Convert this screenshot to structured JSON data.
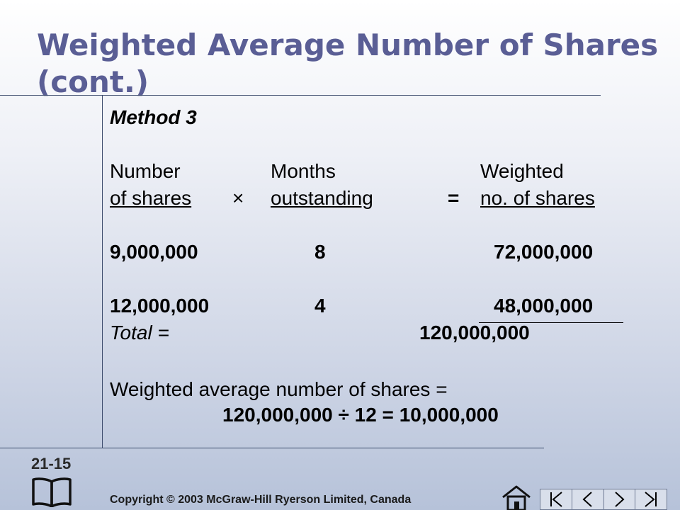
{
  "slide": {
    "title": "Weighted Average Number of Shares (cont.)",
    "method_label": "Method 3",
    "headers": {
      "col1_line1": "Number",
      "col1_line2": "of shares",
      "times_sign": "×",
      "col2_line1": "Months",
      "col2_line2": "outstanding",
      "equals_sign": "=",
      "col3_line1": "Weighted",
      "col3_line2": "no. of shares"
    },
    "rows": [
      {
        "shares": "9,000,000",
        "months": "8",
        "weighted": "72,000,000"
      },
      {
        "shares": "12,000,000",
        "months": "4",
        "weighted": "48,000,000"
      }
    ],
    "total_label": "Total =",
    "total_value": "120,000,000",
    "result_label": "Weighted average number of shares =",
    "result_formula": "120,000,000 ÷ 12 = 10,000,000"
  },
  "footer": {
    "slide_number": "21-15",
    "copyright": "Copyright © 2003 McGraw-Hill Ryerson Limited, Canada"
  },
  "icons": {
    "book": "book-icon",
    "home": "home-icon",
    "nav": [
      "first-slide-icon",
      "previous-slide-icon",
      "next-slide-icon",
      "last-slide-icon"
    ]
  }
}
